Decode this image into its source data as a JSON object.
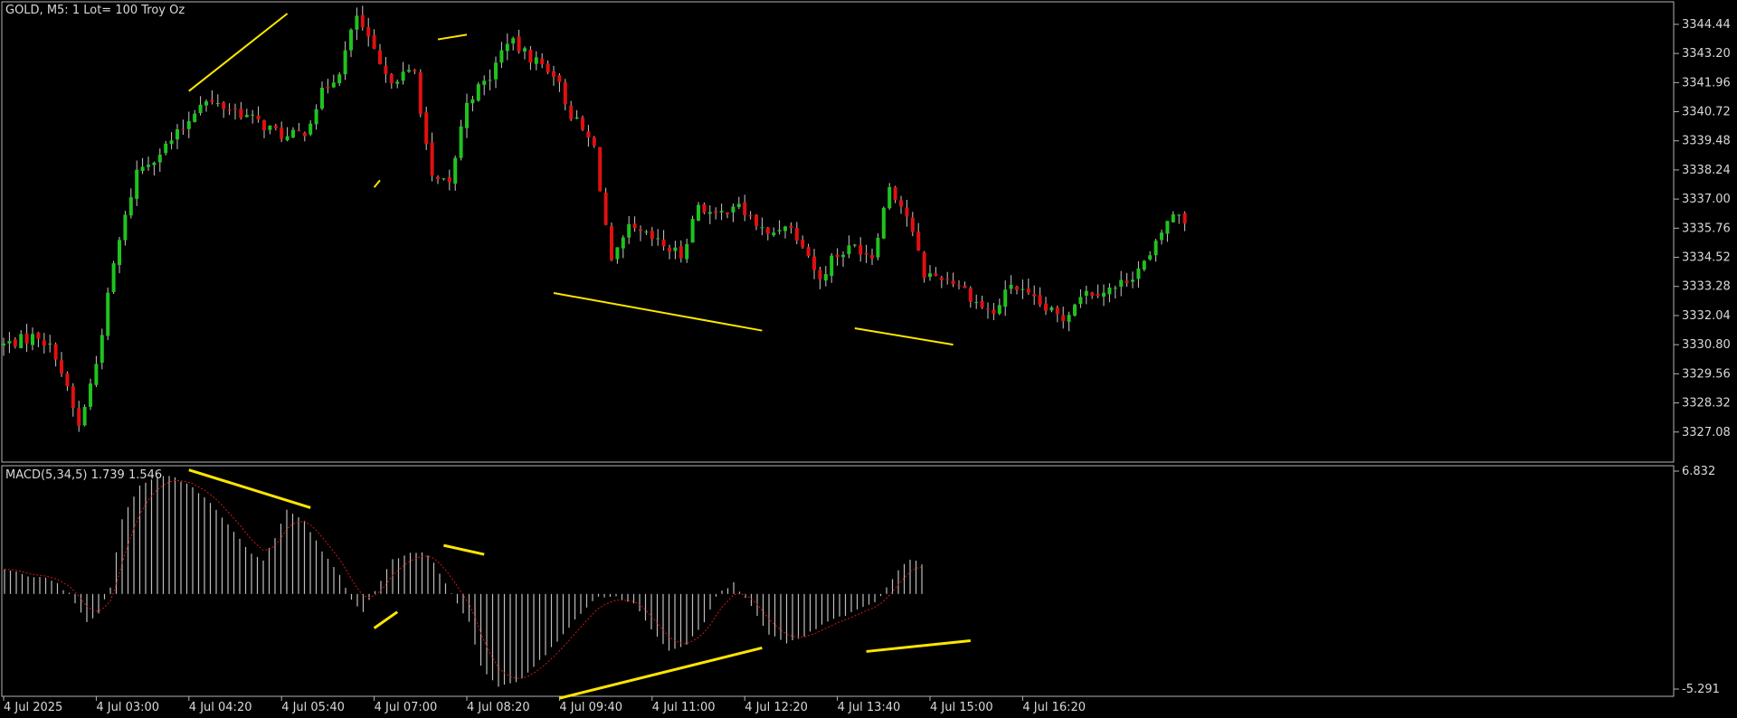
{
  "symbol_info": "GOLD, M5:  1 Lot= 100 Troy Oz",
  "macd_info": "MACD(5,34,5) 1.739 1.546",
  "colors": {
    "background": "#000000",
    "up_candle": "#1fc21f",
    "down_candle": "#e01010",
    "wick": "#c8c8c8",
    "trendline": "#ffe600",
    "macd_hist": "#bdbdbd",
    "macd_signal": "#d01818",
    "axis_text": "#d8d8d8",
    "frame": "#b4b4b4"
  },
  "price_axis": {
    "ticks": [
      "3344.44",
      "3343.20",
      "3341.96",
      "3340.72",
      "3339.48",
      "3338.24",
      "3337.00",
      "3335.76",
      "3334.52",
      "3333.28",
      "3332.04",
      "3330.80",
      "3329.56",
      "3328.32",
      "3327.08"
    ],
    "range": [
      3325.8,
      3345.4
    ]
  },
  "macd_axis": {
    "ticks": [
      "6.832",
      "-5.291"
    ],
    "range": [
      -5.291,
      6.832
    ]
  },
  "time_axis": {
    "labels": [
      "4 Jul 2025",
      "4 Jul 03:00",
      "4 Jul 04:20",
      "4 Jul 05:40",
      "4 Jul 07:00",
      "4 Jul 08:20",
      "4 Jul 09:40",
      "4 Jul 11:00",
      "4 Jul 12:20",
      "4 Jul 13:40",
      "4 Jul 15:00",
      "4 Jul 16:20"
    ]
  },
  "chart_data": [
    {
      "type": "candlestick",
      "title": "GOLD, M5",
      "x_start": "4 Jul 2025 01:40",
      "interval_minutes": 5,
      "anchors": [
        [
          0,
          3330.8
        ],
        [
          6,
          3331.2
        ],
        [
          9,
          3330.4
        ],
        [
          13,
          3327.3
        ],
        [
          16,
          3330.0
        ],
        [
          19,
          3334.2
        ],
        [
          23,
          3338.2
        ],
        [
          27,
          3339.0
        ],
        [
          31,
          3340.0
        ],
        [
          34,
          3341.2
        ],
        [
          40,
          3340.8
        ],
        [
          46,
          3340.0
        ],
        [
          49,
          3339.6
        ],
        [
          52,
          3339.9
        ],
        [
          55,
          3341.5
        ],
        [
          58,
          3342.5
        ],
        [
          61,
          3344.8
        ],
        [
          66,
          3342.1
        ],
        [
          71,
          3342.4
        ],
        [
          74,
          3337.8
        ],
        [
          77,
          3337.6
        ],
        [
          80,
          3341.2
        ],
        [
          84,
          3342.2
        ],
        [
          87,
          3343.8
        ],
        [
          90,
          3343.2
        ],
        [
          95,
          3342.4
        ],
        [
          98,
          3340.6
        ],
        [
          102,
          3339.2
        ],
        [
          105,
          3334.2
        ],
        [
          108,
          3335.7
        ],
        [
          111,
          3335.4
        ],
        [
          114,
          3335.0
        ],
        [
          117,
          3334.6
        ],
        [
          120,
          3336.8
        ],
        [
          123,
          3336.2
        ],
        [
          126,
          3336.8
        ],
        [
          129,
          3336.2
        ],
        [
          132,
          3335.4
        ],
        [
          135,
          3336.0
        ],
        [
          138,
          3335.2
        ],
        [
          141,
          3333.5
        ],
        [
          143,
          3334.5
        ],
        [
          147,
          3335.0
        ],
        [
          150,
          3334.6
        ],
        [
          153,
          3337.6
        ],
        [
          156,
          3336.3
        ],
        [
          159,
          3333.8
        ],
        [
          162,
          3333.7
        ],
        [
          165,
          3333.4
        ],
        [
          168,
          3332.6
        ],
        [
          171,
          3332.1
        ],
        [
          174,
          3333.4
        ],
        [
          177,
          3332.8
        ],
        [
          180,
          3332.3
        ],
        [
          183,
          3331.9
        ],
        [
          186,
          3333.0
        ],
        [
          189,
          3333.1
        ],
        [
          192,
          3333.2
        ],
        [
          195,
          3333.8
        ],
        [
          198,
          3334.5
        ],
        [
          201,
          3336.1
        ],
        [
          203,
          3336.4
        ],
        [
          204,
          3336.1
        ]
      ],
      "trendlines": [
        {
          "p1": [
            "4 Jul 04:20",
            3341.6
          ],
          "p2": [
            "4 Jul 05:45",
            3344.9
          ]
        },
        {
          "p1": [
            "4 Jul 07:00",
            3337.5
          ],
          "p2": [
            "4 Jul 07:05",
            3337.8
          ]
        },
        {
          "p1": [
            "4 Jul 07:55",
            3343.8
          ],
          "p2": [
            "4 Jul 08:20",
            3344.0
          ]
        },
        {
          "p1": [
            "4 Jul 09:35",
            3333.0
          ],
          "p2": [
            "4 Jul 12:35",
            3331.4
          ]
        },
        {
          "p1": [
            "4 Jul 13:55",
            3331.5
          ],
          "p2": [
            "4 Jul 15:20",
            3330.8
          ]
        }
      ]
    },
    {
      "type": "histogram+line",
      "title": "MACD(5,34,5)",
      "macd_value": 1.739,
      "signal_value": 1.546,
      "ylim": [
        -5.291,
        6.832
      ],
      "anchors": [
        [
          0,
          1.4
        ],
        [
          4,
          1.0
        ],
        [
          8,
          0.8
        ],
        [
          11,
          0.0
        ],
        [
          14,
          -1.6
        ],
        [
          16,
          -1.1
        ],
        [
          18,
          0.4
        ],
        [
          20,
          4.2
        ],
        [
          23,
          6.0
        ],
        [
          26,
          6.6
        ],
        [
          29,
          6.5
        ],
        [
          32,
          5.9
        ],
        [
          35,
          5.0
        ],
        [
          39,
          3.5
        ],
        [
          42,
          2.2
        ],
        [
          44,
          1.9
        ],
        [
          46,
          3.1
        ],
        [
          48,
          4.7
        ],
        [
          51,
          4.0
        ],
        [
          54,
          2.4
        ],
        [
          57,
          1.0
        ],
        [
          59,
          -0.3
        ],
        [
          61,
          -1.0
        ],
        [
          63,
          0.2
        ],
        [
          66,
          1.9
        ],
        [
          69,
          2.3
        ],
        [
          72,
          2.2
        ],
        [
          75,
          0.6
        ],
        [
          77,
          -0.5
        ],
        [
          79,
          -1.6
        ],
        [
          81,
          -4.0
        ],
        [
          84,
          -5.2
        ],
        [
          87,
          -4.9
        ],
        [
          90,
          -4.1
        ],
        [
          94,
          -2.6
        ],
        [
          98,
          -1.1
        ],
        [
          101,
          -0.1
        ],
        [
          104,
          -0.2
        ],
        [
          107,
          -0.5
        ],
        [
          110,
          -2.0
        ],
        [
          113,
          -3.1
        ],
        [
          116,
          -2.8
        ],
        [
          119,
          -1.5
        ],
        [
          121,
          -0.1
        ],
        [
          124,
          0.6
        ],
        [
          127,
          -0.6
        ],
        [
          130,
          -2.3
        ],
        [
          133,
          -2.7
        ],
        [
          136,
          -2.4
        ],
        [
          139,
          -1.7
        ],
        [
          142,
          -1.3
        ],
        [
          145,
          -0.9
        ],
        [
          148,
          -0.5
        ],
        [
          150,
          0.3
        ],
        [
          152,
          1.3
        ],
        [
          154,
          1.9
        ],
        [
          156,
          1.7
        ]
      ],
      "trendlines": [
        {
          "p1": [
            "4 Jul 04:20",
            6.9
          ],
          "p2": [
            "4 Jul 06:05",
            4.8
          ]
        },
        {
          "p1": [
            "4 Jul 07:00",
            -1.9
          ],
          "p2": [
            "4 Jul 07:20",
            -1.0
          ]
        },
        {
          "p1": [
            "4 Jul 08:00",
            2.7
          ],
          "p2": [
            "4 Jul 08:35",
            2.2
          ]
        },
        {
          "p1": [
            "4 Jul 09:40",
            -5.8
          ],
          "p2": [
            "4 Jul 12:35",
            -3.0
          ]
        },
        {
          "p1": [
            "4 Jul 14:05",
            -3.2
          ],
          "p2": [
            "4 Jul 15:35",
            -2.6
          ]
        }
      ]
    }
  ]
}
